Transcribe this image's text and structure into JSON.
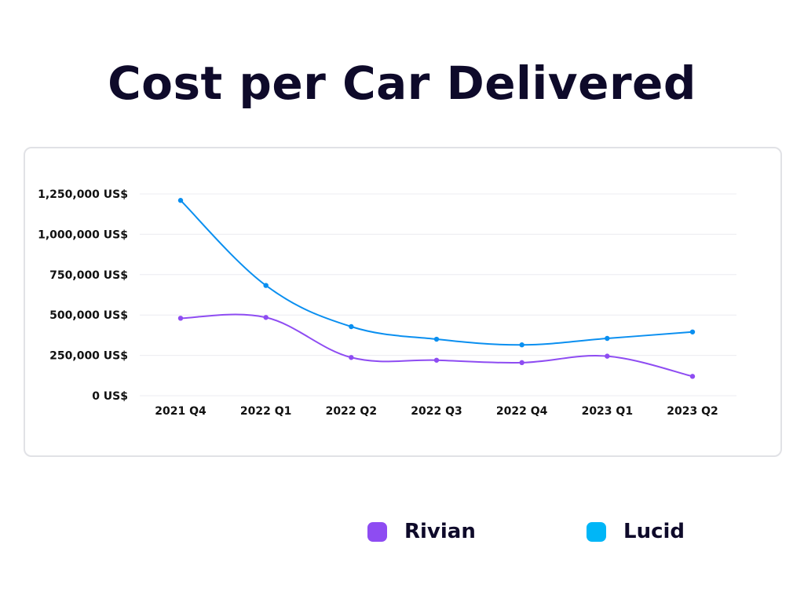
{
  "title": "Cost per Car Delivered",
  "legend": [
    {
      "label": "Rivian",
      "color": "#8e4cf2"
    },
    {
      "label": "Lucid",
      "color": "#00b6f7"
    }
  ],
  "chart_data": {
    "type": "line",
    "title": "Cost per Car Delivered",
    "xlabel": "",
    "ylabel": "",
    "categories": [
      "2021 Q4",
      "2022 Q1",
      "2022 Q2",
      "2022 Q3",
      "2022 Q4",
      "2023 Q1",
      "2023 Q2"
    ],
    "y_ticks": [
      0,
      250000,
      500000,
      750000,
      1000000,
      1250000
    ],
    "y_tick_labels": [
      "0 US$",
      "250,000 US$",
      "500,000 US$",
      "750,000 US$",
      "1,000,000 US$",
      "1,250,000 US$"
    ],
    "ylim": [
      0,
      1250000
    ],
    "grid": true,
    "legend_position": "bottom",
    "series": [
      {
        "name": "Rivian",
        "color": "#8e4cf2",
        "values": [
          480000,
          485000,
          237000,
          220000,
          205000,
          245000,
          120000
        ]
      },
      {
        "name": "Lucid",
        "color": "#0a8ff0",
        "values": [
          1210000,
          683000,
          428000,
          350000,
          315000,
          355000,
          395000
        ]
      }
    ]
  }
}
